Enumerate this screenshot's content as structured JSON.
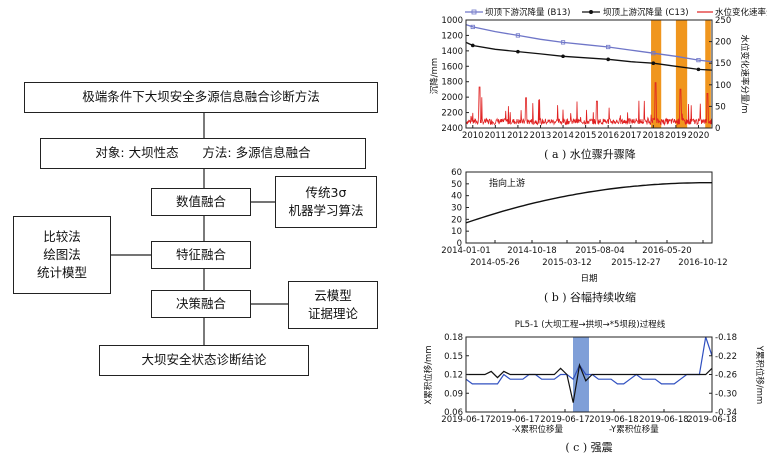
{
  "flow": {
    "title": "极端条件下大坝安全多源信息融合诊断方法",
    "object_line": "对象: 大坝性态      方法: 多源信息融合",
    "data_fusion": "数值融合",
    "feature_fusion": "特征融合",
    "decision_fusion": "决策融合",
    "conclusion": "大坝安全状态诊断结论",
    "methods_right_1": [
      "传统3σ",
      "机器学习算法"
    ],
    "methods_left": [
      "比较法",
      "绘图法",
      "统计模型"
    ],
    "methods_right_2": [
      "云模型",
      "证据理论"
    ]
  },
  "chart_a": {
    "legend": [
      "坝顶下游沉降量 (B13)",
      "坝顶上游沉降量 (C13)",
      "水位变化速率分量"
    ],
    "ylabel_left": "沉降/mm",
    "ylabel_right": "水位变化速率分量/m",
    "y_left_ticks": [
      "1000",
      "1200",
      "1400",
      "1600",
      "1800",
      "2000",
      "2200",
      "2400"
    ],
    "y_right_ticks": [
      "250",
      "200",
      "150",
      "100",
      "50",
      "0"
    ],
    "x_ticks": [
      "2010",
      "2011",
      "2012",
      "2013",
      "2014",
      "2015",
      "2016",
      "2017",
      "2018",
      "2019",
      "2020"
    ],
    "caption": "( a ) 水位骤升骤降",
    "colors": {
      "b13": "#6f76c8",
      "c13": "#111111",
      "rate": "#e02020",
      "highlight": "#f0961e"
    }
  },
  "chart_b": {
    "annotation": "指向上游",
    "y_ticks": [
      "0",
      "10",
      "20",
      "30",
      "40",
      "50",
      "60"
    ],
    "x_ticks_top": [
      "2014-01-01",
      "2014-10-18",
      "2015-08-04",
      "2016-05-20"
    ],
    "x_ticks_bottom": [
      "2014-05-26",
      "2015-03-12",
      "2015-12-27",
      "2016-10-12"
    ],
    "xlabel": "日期",
    "caption": "( b ) 谷幅持续收缩"
  },
  "chart_c": {
    "title": "PL5-1 (大坝工程→拱坝→*5坝段)过程线",
    "ylabel_left": "X累积位移/mm",
    "ylabel_right": "Y累积位移/mm",
    "y_left_ticks": [
      "0.18",
      "0.15",
      "0.12",
      "0.09",
      "0.06"
    ],
    "y_right_ticks": [
      "-0.18",
      "-0.22",
      "-0.26",
      "-0.30",
      "-0.34"
    ],
    "x_ticks": [
      "2019-06-17",
      "2019-06-17",
      "2019-06-17",
      "2019-06-18",
      "2019-06-18",
      "2019-06-18"
    ],
    "legend": [
      "-X累积位移量",
      "-Y累积位移量"
    ],
    "caption": "( c ) 强震",
    "colors": {
      "x": "#111111",
      "y": "#3050c0",
      "highlight": "#7f9fd8"
    }
  },
  "chart_data": [
    {
      "type": "line",
      "title": "",
      "xlabel": "",
      "ylabel": "沉降/mm",
      "x": [
        2009.7,
        2010,
        2011,
        2012,
        2013,
        2014,
        2015,
        2016,
        2017,
        2018,
        2019,
        2020,
        2020.6
      ],
      "series": [
        {
          "name": "坝顶下游沉降量 (B13)",
          "values": [
            1060,
            1090,
            1150,
            1200,
            1250,
            1290,
            1320,
            1350,
            1390,
            1430,
            1470,
            1520,
            1540
          ]
        },
        {
          "name": "坝顶上游沉降量 (C13)",
          "values": [
            1290,
            1330,
            1380,
            1410,
            1440,
            1470,
            1490,
            1510,
            1540,
            1560,
            1600,
            1640,
            1650
          ]
        }
      ],
      "ylim": [
        2400,
        1000
      ],
      "y2lim": [
        0,
        250
      ],
      "highlight_ranges": [
        [
          2017.9,
          2018.35
        ],
        [
          2019.0,
          2019.5
        ],
        [
          2020.3,
          2020.55
        ]
      ]
    },
    {
      "type": "line",
      "title": "",
      "xlabel": "日期",
      "x": [
        "2014-01-01",
        "2014-10-18",
        "2015-08-04",
        "2016-05-20",
        "2017-01-15"
      ],
      "series": [
        {
          "name": "",
          "values": [
            17,
            33,
            41,
            47,
            51
          ]
        }
      ],
      "ylim": [
        0,
        60
      ]
    },
    {
      "type": "line",
      "title": "PL5-1 (大坝工程→拱坝→*5坝段)过程线",
      "x_index": [
        0,
        1,
        2,
        3,
        4,
        5,
        6,
        7,
        8,
        9,
        10,
        11,
        12,
        13,
        14,
        15,
        16,
        17,
        18,
        19,
        20,
        21,
        22,
        23,
        24,
        25,
        26,
        27,
        28,
        29,
        30,
        31,
        32,
        33,
        34,
        35,
        36,
        37,
        38,
        39
      ],
      "series": [
        {
          "name": "-X累积位移量",
          "values": [
            0.12,
            0.12,
            0.12,
            0.12,
            0.125,
            0.115,
            0.125,
            0.12,
            0.12,
            0.12,
            0.12,
            0.12,
            0.12,
            0.12,
            0.12,
            0.13,
            0.12,
            0.075,
            0.135,
            0.11,
            0.12,
            0.12,
            0.12,
            0.12,
            0.12,
            0.12,
            0.12,
            0.12,
            0.12,
            0.12,
            0.12,
            0.12,
            0.12,
            0.12,
            0.12,
            0.12,
            0.12,
            0.12,
            0.12,
            0.13
          ]
        },
        {
          "name": "-Y累积位移量",
          "values": [
            -0.27,
            -0.28,
            -0.28,
            -0.28,
            -0.28,
            -0.28,
            -0.26,
            -0.27,
            -0.27,
            -0.27,
            -0.26,
            -0.26,
            -0.27,
            -0.27,
            -0.27,
            -0.26,
            -0.26,
            -0.27,
            -0.24,
            -0.26,
            -0.26,
            -0.27,
            -0.27,
            -0.27,
            -0.28,
            -0.28,
            -0.27,
            -0.26,
            -0.27,
            -0.27,
            -0.27,
            -0.28,
            -0.28,
            -0.28,
            -0.27,
            -0.26,
            -0.26,
            -0.26,
            -0.18,
            -0.22
          ]
        }
      ],
      "ylim": [
        0.06,
        0.18
      ],
      "y2lim": [
        -0.34,
        -0.18
      ],
      "highlight_index_range": [
        16,
        18
      ]
    }
  ]
}
